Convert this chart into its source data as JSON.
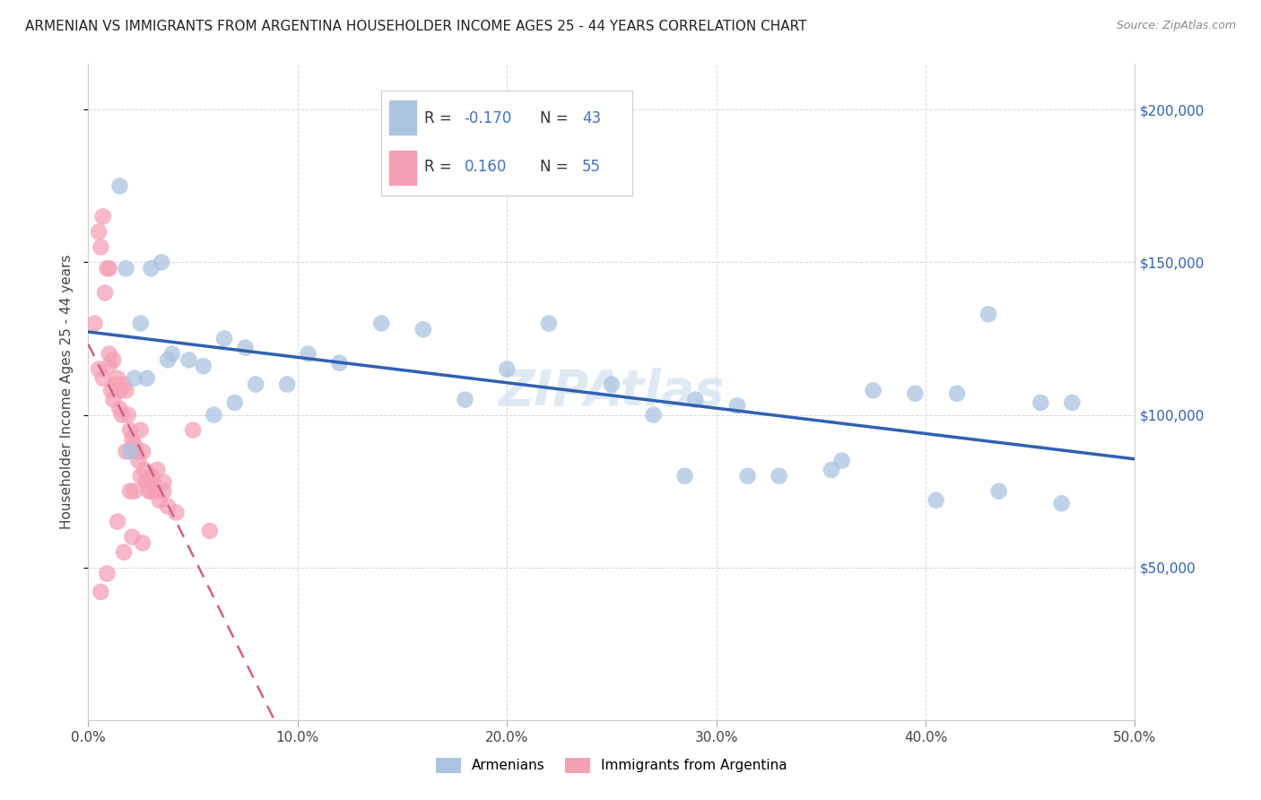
{
  "title": "ARMENIAN VS IMMIGRANTS FROM ARGENTINA HOUSEHOLDER INCOME AGES 25 - 44 YEARS CORRELATION CHART",
  "source": "Source: ZipAtlas.com",
  "ylabel": "Householder Income Ages 25 - 44 years",
  "xlabel_ticks": [
    "0.0%",
    "10.0%",
    "20.0%",
    "30.0%",
    "40.0%",
    "50.0%"
  ],
  "xlabel_vals": [
    0.0,
    10.0,
    20.0,
    30.0,
    40.0,
    50.0
  ],
  "ylabel_ticks": [
    "$50,000",
    "$100,000",
    "$150,000",
    "$200,000"
  ],
  "ylabel_vals": [
    50000,
    100000,
    150000,
    200000
  ],
  "xlim": [
    0,
    50
  ],
  "ylim": [
    0,
    215000
  ],
  "armenian_color": "#aac4e0",
  "argentina_color": "#f5a0b5",
  "armenian_line_color": "#3060b0",
  "argentina_line_color": "#d06080",
  "legend_color": "#4472c4",
  "watermark": "ZIPAtlas",
  "armenian_x": [
    1.5,
    2.5,
    3.0,
    3.5,
    4.0,
    5.5,
    6.5,
    7.5,
    9.5,
    12.0,
    16.0,
    18.0,
    22.0,
    27.0,
    29.0,
    31.0,
    33.0,
    35.5,
    37.5,
    39.5,
    41.5,
    43.0,
    45.5,
    47.0,
    1.8,
    2.2,
    2.8,
    3.8,
    4.8,
    6.0,
    7.0,
    8.0,
    10.5,
    14.0,
    20.0,
    25.0,
    28.5,
    31.5,
    36.0,
    40.5,
    43.5,
    46.5,
    2.0
  ],
  "armenian_y": [
    175000,
    130000,
    148000,
    150000,
    120000,
    116000,
    125000,
    122000,
    110000,
    117000,
    128000,
    105000,
    130000,
    100000,
    105000,
    103000,
    80000,
    82000,
    108000,
    107000,
    107000,
    133000,
    104000,
    104000,
    148000,
    112000,
    112000,
    118000,
    118000,
    100000,
    104000,
    110000,
    120000,
    130000,
    115000,
    110000,
    80000,
    80000,
    85000,
    72000,
    75000,
    71000,
    88000
  ],
  "argentina_x": [
    0.3,
    0.5,
    0.6,
    0.7,
    0.8,
    0.9,
    1.0,
    1.0,
    1.1,
    1.2,
    1.3,
    1.4,
    1.5,
    1.6,
    1.7,
    1.8,
    1.9,
    2.0,
    2.1,
    2.2,
    2.3,
    2.4,
    2.5,
    2.6,
    2.7,
    2.8,
    2.9,
    3.0,
    3.1,
    3.2,
    3.4,
    3.6,
    3.8,
    4.2,
    5.0,
    5.8,
    0.5,
    0.7,
    1.0,
    1.2,
    1.5,
    1.8,
    2.0,
    2.2,
    2.5,
    2.8,
    3.0,
    3.3,
    3.6,
    0.6,
    0.9,
    1.4,
    1.7,
    2.1,
    2.6
  ],
  "argentina_y": [
    130000,
    160000,
    155000,
    165000,
    140000,
    148000,
    120000,
    148000,
    108000,
    118000,
    110000,
    112000,
    102000,
    100000,
    110000,
    108000,
    100000,
    95000,
    92000,
    90000,
    88000,
    85000,
    95000,
    88000,
    82000,
    78000,
    75000,
    80000,
    78000,
    75000,
    72000,
    75000,
    70000,
    68000,
    95000,
    62000,
    115000,
    112000,
    116000,
    105000,
    108000,
    88000,
    75000,
    75000,
    80000,
    78000,
    75000,
    82000,
    78000,
    42000,
    48000,
    65000,
    55000,
    60000,
    58000
  ]
}
